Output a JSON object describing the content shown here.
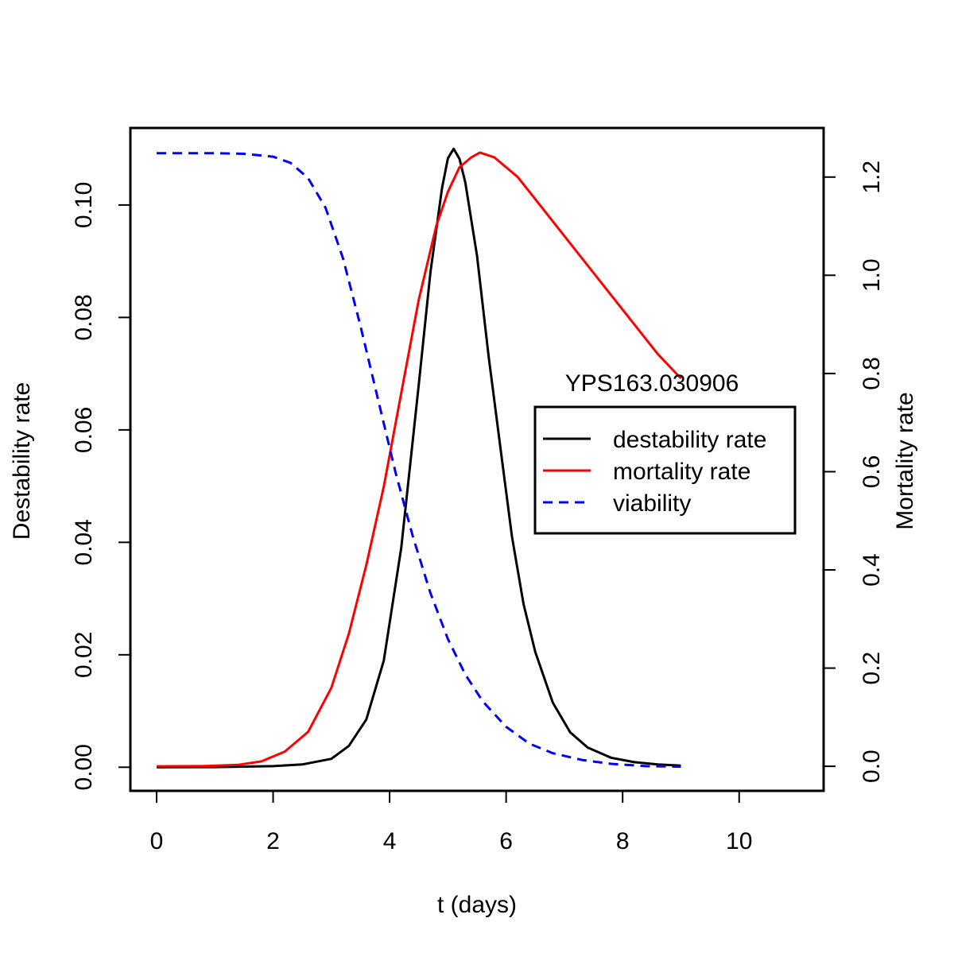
{
  "chart_data": {
    "type": "line",
    "title": "",
    "xlabel": "t (days)",
    "ylabel_left": "Destability rate",
    "ylabel_right": "Mortality rate",
    "annotation": "YPS163.030906",
    "xlim": [
      -0.45,
      11.45
    ],
    "ylim_left": [
      -0.0042,
      0.1137
    ],
    "ylim_right": [
      -0.05,
      1.3
    ],
    "x_ticks": [
      "0",
      "2",
      "4",
      "6",
      "8",
      "10"
    ],
    "y_left_ticks": [
      "0.00",
      "0.02",
      "0.04",
      "0.06",
      "0.08",
      "0.10"
    ],
    "y_right_ticks": [
      "0.0",
      "0.2",
      "0.4",
      "0.6",
      "0.8",
      "1.0",
      "1.2"
    ],
    "grid": false,
    "legend": {
      "position": "center-right",
      "entries": [
        "destability rate",
        "mortality rate",
        "viability"
      ]
    },
    "series": [
      {
        "name": "destability rate",
        "axis": "left",
        "color": "#000000",
        "dash": "solid",
        "x": [
          0,
          1.0,
          2.0,
          2.5,
          3.0,
          3.3,
          3.6,
          3.9,
          4.2,
          4.5,
          4.7,
          4.9,
          5.0,
          5.1,
          5.2,
          5.3,
          5.5,
          5.7,
          5.9,
          6.1,
          6.3,
          6.5,
          6.8,
          7.1,
          7.4,
          7.8,
          8.2,
          8.6,
          9.0
        ],
        "values": [
          0,
          3e-05,
          0.0002,
          0.0005,
          0.0015,
          0.0038,
          0.0085,
          0.019,
          0.039,
          0.068,
          0.088,
          0.103,
          0.1083,
          0.11,
          0.1082,
          0.104,
          0.091,
          0.073,
          0.057,
          0.041,
          0.029,
          0.0205,
          0.0115,
          0.0062,
          0.0035,
          0.0017,
          0.0009,
          0.0005,
          0.0003
        ]
      },
      {
        "name": "mortality rate",
        "axis": "right",
        "color": "#ff0000",
        "dash": "solid",
        "x": [
          0,
          0.8,
          1.4,
          1.8,
          2.2,
          2.6,
          3.0,
          3.3,
          3.6,
          3.9,
          4.2,
          4.5,
          4.8,
          5.0,
          5.2,
          5.4,
          5.55,
          5.8,
          6.2,
          6.6,
          7.0,
          7.4,
          7.8,
          8.2,
          8.6,
          9.0
        ],
        "values": [
          0,
          0.0003,
          0.003,
          0.01,
          0.03,
          0.07,
          0.16,
          0.27,
          0.41,
          0.57,
          0.76,
          0.95,
          1.1,
          1.17,
          1.22,
          1.24,
          1.25,
          1.24,
          1.2,
          1.14,
          1.08,
          1.02,
          0.96,
          0.9,
          0.84,
          0.79
        ]
      },
      {
        "name": "viability",
        "axis": "left",
        "color": "#0000ff",
        "dash": "dashed",
        "x": [
          0,
          0.5,
          1.0,
          1.5,
          2.0,
          2.3,
          2.6,
          2.9,
          3.2,
          3.5,
          3.8,
          4.1,
          4.4,
          4.7,
          5.0,
          5.3,
          5.6,
          6.0,
          6.4,
          6.8,
          7.3,
          7.8,
          8.4,
          9.0
        ],
        "values": [
          0.1092,
          0.1092,
          0.1092,
          0.1091,
          0.1086,
          0.1075,
          0.1048,
          0.0995,
          0.0905,
          0.0785,
          0.0655,
          0.0525,
          0.041,
          0.031,
          0.0228,
          0.0165,
          0.0117,
          0.0072,
          0.0042,
          0.0025,
          0.0013,
          0.0006,
          0.0002,
          0.0001
        ]
      }
    ]
  }
}
